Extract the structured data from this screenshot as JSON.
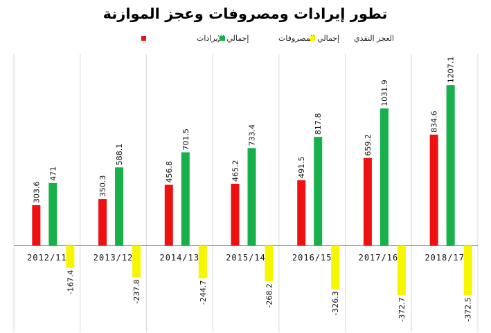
{
  "chart_data": {
    "type": "bar",
    "title": "تطور إيرادات ومصروفات وعجز الموازنة",
    "xlabel": "",
    "ylabel": "",
    "categories": [
      "2012/11",
      "2013/12",
      "2014/13",
      "2015/14",
      "2016/15",
      "2017/16",
      "2018/17"
    ],
    "series": [
      {
        "name": "إجمالي الإيرادات",
        "color": "#ee1111",
        "values": [
          303.6,
          350.3,
          456.8,
          465.2,
          491.5,
          659.2,
          834.6
        ]
      },
      {
        "name": "إجمالي المصروفات",
        "color": "#17b04a",
        "values": [
          471,
          588.1,
          701.5,
          733.4,
          817.8,
          1031.9,
          1207.1
        ]
      },
      {
        "name": "العجز النقدي",
        "color": "#f6f600",
        "values": [
          -167.4,
          -237.8,
          -244.7,
          -268.2,
          -326.3,
          -372.7,
          -372.5
        ]
      }
    ],
    "value_labels": [
      [
        "303.6",
        "350.3",
        "456.8",
        "465.2",
        "491.5",
        "659.2",
        "834.6"
      ],
      [
        "471",
        "588.1",
        "701.5",
        "733.4",
        "817.8",
        "1031.9",
        "1207.1"
      ],
      [
        "-167.4",
        "-237.8",
        "-244.7",
        "-268.2",
        "-326.3",
        "-372.7",
        "-372.5"
      ]
    ],
    "ylim": [
      -420,
      1290
    ],
    "grid": "vertical category separators",
    "legend": "top-center"
  }
}
